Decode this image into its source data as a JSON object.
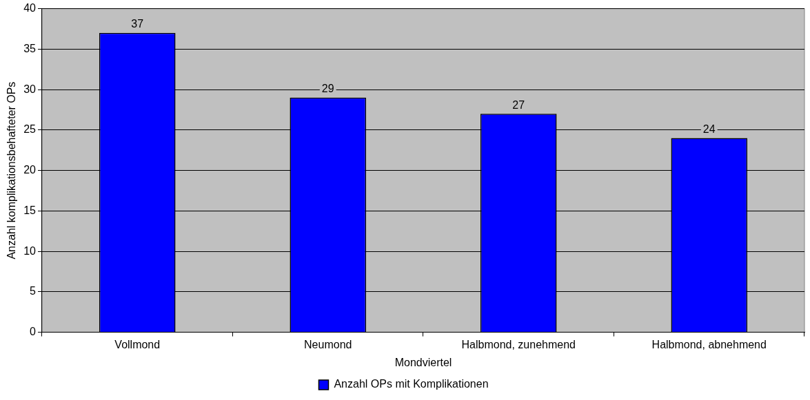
{
  "chart_data": {
    "type": "bar",
    "xlabel": "Mondviertel",
    "ylabel": "Anzahl komplikationsbehafteter OPs",
    "categories": [
      "Vollmond",
      "Neumond",
      "Halbmond, zunehmend",
      "Halbmond, abnehmend"
    ],
    "series": [
      {
        "name": "Anzahl OPs mit Komplikationen",
        "color": "#0000ff",
        "values": [
          37,
          29,
          27,
          24
        ]
      }
    ],
    "ylim": [
      0,
      40
    ],
    "yticks": [
      0,
      5,
      10,
      15,
      20,
      25,
      30,
      35,
      40
    ],
    "grid": "y",
    "legend": "bottom",
    "data_labels": true
  }
}
